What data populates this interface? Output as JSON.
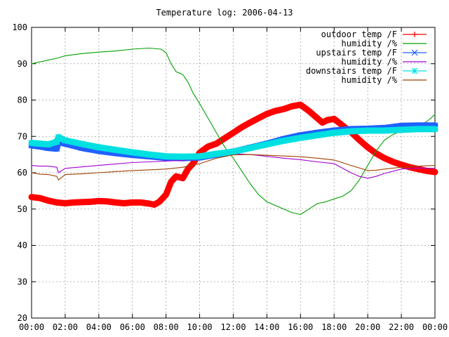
{
  "chart_data": {
    "type": "line",
    "title": "Temperature log: 2006-04-13",
    "xlabel": "",
    "ylabel": "",
    "x_unit": "hours",
    "xlim": [
      0,
      24
    ],
    "ylim": [
      20,
      100
    ],
    "yticks": [
      20,
      30,
      40,
      50,
      60,
      70,
      80,
      90,
      100
    ],
    "xticks": [
      0,
      2,
      4,
      6,
      8,
      10,
      12,
      14,
      16,
      18,
      20,
      22,
      24
    ],
    "xtick_labels": [
      "00:00",
      "02:00",
      "04:00",
      "06:00",
      "08:00",
      "10:00",
      "12:00",
      "14:00",
      "16:00",
      "18:00",
      "20:00",
      "22:00",
      "00:00"
    ],
    "grid": true,
    "legend_position": "top-right",
    "series": [
      {
        "name": "outdoor temp /F",
        "color": "#ff0000",
        "marker": "plus",
        "thick": true,
        "points": [
          [
            0,
            53.3
          ],
          [
            0.5,
            53.0
          ],
          [
            1,
            52.3
          ],
          [
            1.5,
            51.8
          ],
          [
            2,
            51.6
          ],
          [
            2.5,
            51.8
          ],
          [
            3,
            51.9
          ],
          [
            3.5,
            52.0
          ],
          [
            4,
            52.2
          ],
          [
            4.5,
            52.1
          ],
          [
            5,
            51.8
          ],
          [
            5.5,
            51.6
          ],
          [
            6,
            51.8
          ],
          [
            6.5,
            51.8
          ],
          [
            7,
            51.5
          ],
          [
            7.3,
            51.2
          ],
          [
            7.6,
            52.0
          ],
          [
            8,
            54.0
          ],
          [
            8.3,
            57.5
          ],
          [
            8.6,
            59.0
          ],
          [
            9,
            58.5
          ],
          [
            9.3,
            61.0
          ],
          [
            9.6,
            62.5
          ],
          [
            10,
            65.5
          ],
          [
            10.5,
            67.2
          ],
          [
            11,
            68.0
          ],
          [
            11.5,
            69.5
          ],
          [
            12,
            71.0
          ],
          [
            12.5,
            72.5
          ],
          [
            13,
            73.8
          ],
          [
            13.5,
            75.0
          ],
          [
            14,
            76.2
          ],
          [
            14.5,
            77.0
          ],
          [
            15,
            77.5
          ],
          [
            15.5,
            78.3
          ],
          [
            16,
            78.7
          ],
          [
            16.5,
            77.0
          ],
          [
            17,
            75.0
          ],
          [
            17.3,
            73.8
          ],
          [
            17.6,
            74.5
          ],
          [
            18,
            74.8
          ],
          [
            18.5,
            73.0
          ],
          [
            19,
            71.2
          ],
          [
            19.5,
            69.0
          ],
          [
            20,
            67.0
          ],
          [
            20.5,
            65.3
          ],
          [
            21,
            64.0
          ],
          [
            21.5,
            63.0
          ],
          [
            22,
            62.2
          ],
          [
            22.5,
            61.5
          ],
          [
            23,
            61.0
          ],
          [
            23.5,
            60.5
          ],
          [
            24,
            60.2
          ]
        ]
      },
      {
        "name": "humidity /%",
        "color": "#00a000",
        "marker": "none",
        "thick": false,
        "points": [
          [
            0,
            90.0
          ],
          [
            0.5,
            90.5
          ],
          [
            1,
            91.0
          ],
          [
            1.5,
            91.5
          ],
          [
            2,
            92.2
          ],
          [
            3,
            92.8
          ],
          [
            4,
            93.2
          ],
          [
            5,
            93.5
          ],
          [
            6,
            94.0
          ],
          [
            7,
            94.3
          ],
          [
            7.7,
            94.0
          ],
          [
            8,
            93.0
          ],
          [
            8.3,
            90.0
          ],
          [
            8.6,
            87.8
          ],
          [
            9,
            87.0
          ],
          [
            9.3,
            85.0
          ],
          [
            9.6,
            82.0
          ],
          [
            10,
            79.0
          ],
          [
            10.5,
            75.0
          ],
          [
            11,
            71.0
          ],
          [
            11.5,
            67.0
          ],
          [
            12,
            64.0
          ],
          [
            12.5,
            60.5
          ],
          [
            13,
            57.0
          ],
          [
            13.5,
            54.0
          ],
          [
            14,
            52.0
          ],
          [
            14.5,
            51.0
          ],
          [
            15,
            50.0
          ],
          [
            15.5,
            49.0
          ],
          [
            16,
            48.5
          ],
          [
            16.5,
            50.0
          ],
          [
            17,
            51.5
          ],
          [
            17.5,
            52.0
          ],
          [
            18,
            52.8
          ],
          [
            18.5,
            53.5
          ],
          [
            19,
            55.0
          ],
          [
            19.5,
            58.0
          ],
          [
            20,
            62.0
          ],
          [
            20.5,
            66.0
          ],
          [
            21,
            69.0
          ],
          [
            21.5,
            70.5
          ],
          [
            22,
            71.5
          ],
          [
            22.5,
            72.5
          ],
          [
            23,
            73.0
          ],
          [
            23.5,
            74.0
          ],
          [
            24,
            76.0
          ]
        ]
      },
      {
        "name": "upstairs temp /F",
        "color": "#2060ff",
        "marker": "x",
        "thick": true,
        "points": [
          [
            0,
            67.5
          ],
          [
            0.5,
            67.2
          ],
          [
            1,
            66.8
          ],
          [
            1.5,
            66.6
          ],
          [
            1.6,
            68.5
          ],
          [
            2,
            68.0
          ],
          [
            3,
            66.8
          ],
          [
            4,
            66.0
          ],
          [
            5,
            65.4
          ],
          [
            6,
            64.9
          ],
          [
            7,
            64.5
          ],
          [
            8,
            64.1
          ],
          [
            9,
            64.0
          ],
          [
            10,
            64.2
          ],
          [
            11,
            65.0
          ],
          [
            12,
            65.8
          ],
          [
            13,
            66.9
          ],
          [
            14,
            68.0
          ],
          [
            15,
            69.3
          ],
          [
            16,
            70.3
          ],
          [
            17,
            71.0
          ],
          [
            18,
            71.6
          ],
          [
            19,
            72.0
          ],
          [
            20,
            72.1
          ],
          [
            21,
            72.3
          ],
          [
            22,
            72.9
          ],
          [
            23,
            73.0
          ],
          [
            24,
            73.0
          ]
        ]
      },
      {
        "name": "humidity /%",
        "color": "#a000d0",
        "marker": "none",
        "thick": false,
        "points": [
          [
            0,
            62.0
          ],
          [
            0.5,
            61.8
          ],
          [
            1,
            61.8
          ],
          [
            1.5,
            61.5
          ],
          [
            1.6,
            60.0
          ],
          [
            2,
            61.2
          ],
          [
            3,
            61.6
          ],
          [
            4,
            62.0
          ],
          [
            5,
            62.4
          ],
          [
            6,
            62.8
          ],
          [
            7,
            63.0
          ],
          [
            8,
            63.2
          ],
          [
            9,
            63.4
          ],
          [
            10,
            64.0
          ],
          [
            11,
            64.8
          ],
          [
            12,
            65.2
          ],
          [
            13,
            65.0
          ],
          [
            14,
            64.5
          ],
          [
            15,
            64.0
          ],
          [
            16,
            63.6
          ],
          [
            17,
            63.0
          ],
          [
            18,
            62.5
          ],
          [
            19,
            60.0
          ],
          [
            19.5,
            59.0
          ],
          [
            20,
            58.5
          ],
          [
            20.5,
            59.0
          ],
          [
            21,
            59.8
          ],
          [
            22,
            61.0
          ],
          [
            23,
            61.3
          ],
          [
            24,
            61.2
          ]
        ]
      },
      {
        "name": "downstairs temp /F",
        "color": "#00e0e0",
        "marker": "star",
        "thick": true,
        "points": [
          [
            0,
            68.2
          ],
          [
            0.5,
            68.0
          ],
          [
            1,
            67.8
          ],
          [
            1.5,
            68.5
          ],
          [
            1.6,
            69.8
          ],
          [
            2,
            68.9
          ],
          [
            3,
            67.9
          ],
          [
            4,
            67.0
          ],
          [
            5,
            66.3
          ],
          [
            6,
            65.6
          ],
          [
            7,
            65.0
          ],
          [
            8,
            64.5
          ],
          [
            9,
            64.4
          ],
          [
            10,
            64.5
          ],
          [
            11,
            65.2
          ],
          [
            12,
            65.8
          ],
          [
            13,
            66.8
          ],
          [
            14,
            67.8
          ],
          [
            15,
            68.8
          ],
          [
            16,
            69.6
          ],
          [
            17,
            70.3
          ],
          [
            18,
            71.0
          ],
          [
            19,
            71.4
          ],
          [
            20,
            71.6
          ],
          [
            21,
            71.6
          ],
          [
            22,
            71.8
          ],
          [
            23,
            72.0
          ],
          [
            24,
            72.0
          ]
        ]
      },
      {
        "name": "humidity /%",
        "color": "#a04000",
        "marker": "none",
        "thick": false,
        "points": [
          [
            0,
            60.0
          ],
          [
            0.5,
            59.6
          ],
          [
            1,
            59.5
          ],
          [
            1.5,
            59.0
          ],
          [
            1.6,
            58.0
          ],
          [
            2,
            59.5
          ],
          [
            3,
            59.7
          ],
          [
            4,
            60.0
          ],
          [
            5,
            60.3
          ],
          [
            6,
            60.6
          ],
          [
            7,
            60.8
          ],
          [
            8,
            61.0
          ],
          [
            9,
            61.5
          ],
          [
            10,
            62.5
          ],
          [
            11,
            64.0
          ],
          [
            12,
            64.9
          ],
          [
            13,
            65.0
          ],
          [
            14,
            64.8
          ],
          [
            15,
            64.6
          ],
          [
            16,
            64.4
          ],
          [
            17,
            64.0
          ],
          [
            18,
            63.5
          ],
          [
            19,
            62.0
          ],
          [
            20,
            60.6
          ],
          [
            20.5,
            60.7
          ],
          [
            21,
            61.0
          ],
          [
            22,
            61.5
          ],
          [
            23,
            61.8
          ],
          [
            24,
            62.0
          ]
        ]
      }
    ]
  }
}
